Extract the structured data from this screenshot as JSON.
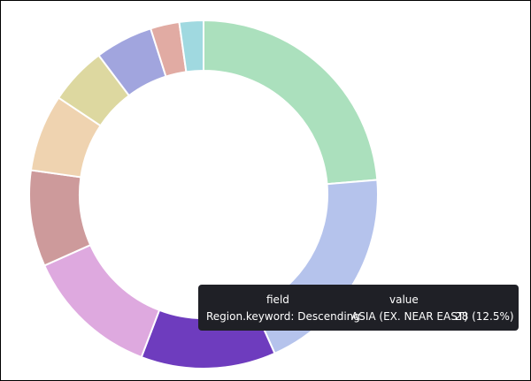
{
  "chart_data": {
    "type": "donut",
    "categories": [
      null,
      null,
      "ASIA (EX. NEAR EAST)",
      null,
      null,
      null,
      null,
      null,
      null,
      null
    ],
    "values": [
      53,
      44,
      28,
      28,
      20,
      16,
      12,
      12,
      6,
      5
    ],
    "colors": [
      "#abe0bd",
      "#b5c3ec",
      "#6e3cbe",
      "#dea9df",
      "#cd9a9b",
      "#efd3b0",
      "#ddd8a0",
      "#a1a5de",
      "#e1aba3",
      "#a0d9e0"
    ],
    "tooltip": {
      "field_header": "field",
      "value_header": "value",
      "field": "Region.keyword: Descending",
      "value_text": "28 (12.5%)"
    }
  }
}
